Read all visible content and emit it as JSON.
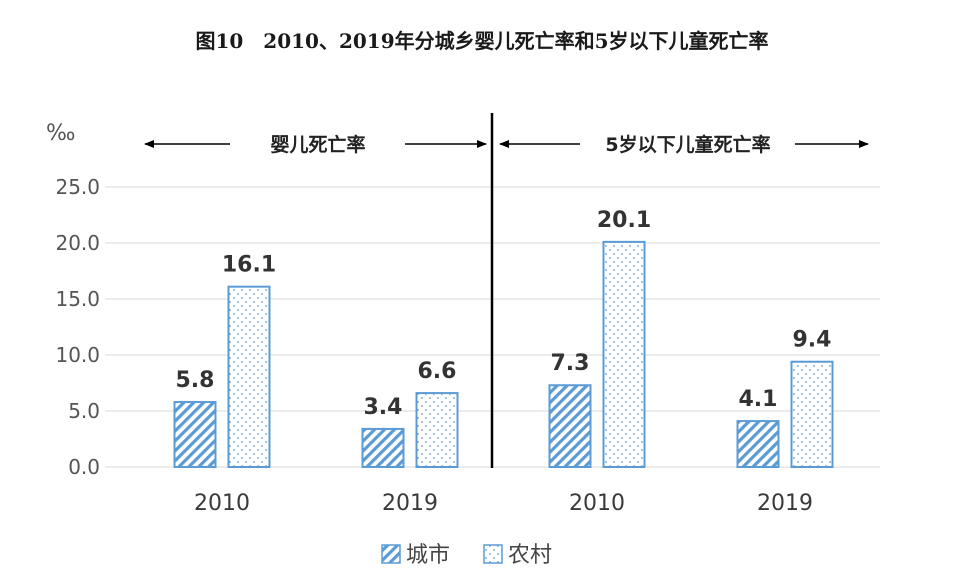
{
  "chart_data": {
    "type": "bar",
    "title": "图10　2010、2019年分城乡婴儿死亡率和5岁以下儿童死亡率",
    "ylabel": "‰",
    "ylim": [
      0,
      25
    ],
    "yticks": [
      "0.0",
      "5.0",
      "10.0",
      "15.0",
      "20.0",
      "25.0"
    ],
    "groups": [
      "婴儿死亡率",
      "5岁以下儿童死亡率"
    ],
    "categories": [
      "2010",
      "2019",
      "2010",
      "2019"
    ],
    "series": [
      {
        "name": "城市",
        "values": [
          5.8,
          3.4,
          7.3,
          4.1
        ],
        "labels": [
          "5.8",
          "3.4",
          "7.3",
          "4.1"
        ]
      },
      {
        "name": "农村",
        "values": [
          16.1,
          6.6,
          20.1,
          9.4
        ],
        "labels": [
          "16.1",
          "6.6",
          "20.1",
          "9.4"
        ]
      }
    ],
    "grid": true,
    "legend": "bottom",
    "colors": {
      "bar_stroke": "#5b9bd5",
      "grid": "#d9d9d9",
      "divider": "#000000"
    }
  }
}
